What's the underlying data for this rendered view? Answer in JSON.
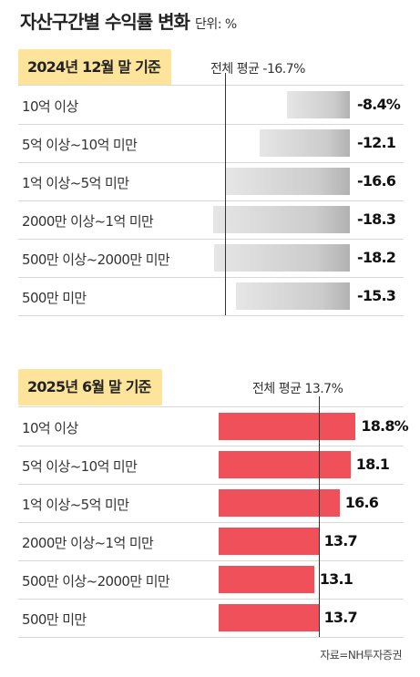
{
  "header": {
    "title": "자산구간별 수익률 변화",
    "unit": "단위: %"
  },
  "chart_data": [
    {
      "type": "bar",
      "orientation": "horizontal",
      "title": "2024년 12월 말 기준",
      "average_label": "전체 평균 -16.7%",
      "average": -16.7,
      "categories": [
        "10억 이상",
        "5억 이상~10억 미만",
        "1억 이상~5억 미만",
        "2000만 이상~1억 미만",
        "500만 이상~2000만 미만",
        "500만 미만"
      ],
      "values": [
        -8.4,
        -12.1,
        -16.6,
        -18.3,
        -18.2,
        -15.3
      ],
      "value_labels": [
        "-8.4%",
        "-12.1",
        "-16.6",
        "-18.3",
        "-18.2",
        "-15.3"
      ],
      "bar_color": "#c8c8c8"
    },
    {
      "type": "bar",
      "orientation": "horizontal",
      "title": "2025년 6월 말 기준",
      "average_label": "전체 평균 13.7%",
      "average": 13.7,
      "categories": [
        "10억 이상",
        "5억 이상~10억 미만",
        "1억 이상~5억 미만",
        "2000만 이상~1억 미만",
        "500만 이상~2000만 미만",
        "500만 미만"
      ],
      "values": [
        18.8,
        18.1,
        16.6,
        13.7,
        13.1,
        13.7
      ],
      "value_labels": [
        "18.8%",
        "18.1",
        "16.6",
        "13.7",
        "13.1",
        "13.7"
      ],
      "bar_color": "#f0505a"
    }
  ],
  "footer": {
    "source": "자료=NH투자증권"
  }
}
